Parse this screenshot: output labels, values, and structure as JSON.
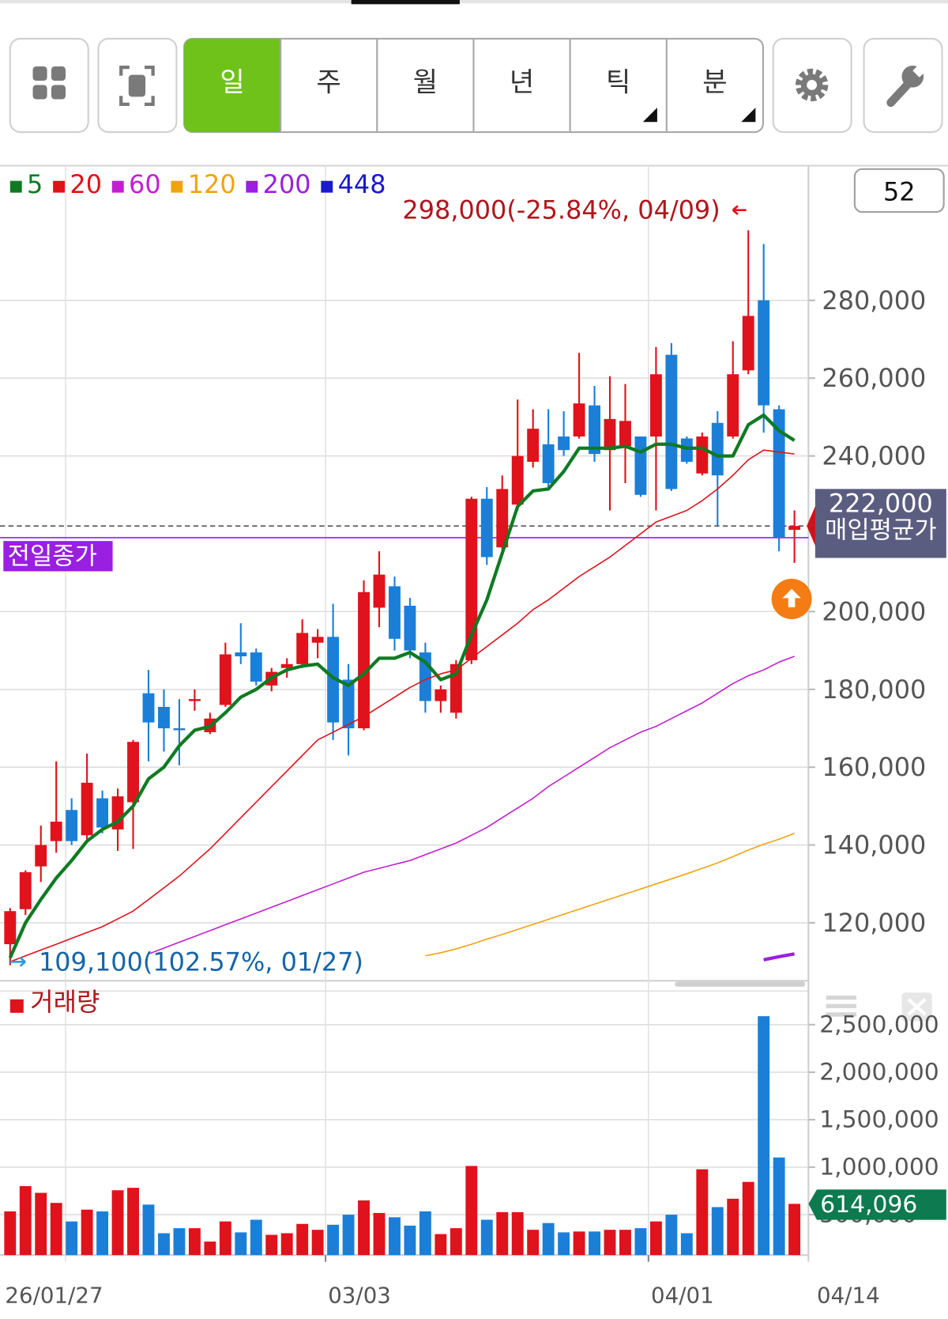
{
  "toolbar": {
    "tabs": [
      "일",
      "주",
      "월",
      "년",
      "틱",
      "분"
    ],
    "active": 0
  },
  "chart_data": [
    {
      "type": "candlestick",
      "visible_count": 52,
      "up_color": "#e0121b",
      "down_color": "#1b7fd8",
      "open": [
        114500,
        123500,
        134500,
        141000,
        149000,
        142500,
        152000,
        144000,
        151000,
        179000,
        175500,
        170000,
        177000,
        169000,
        176000,
        189500,
        189500,
        181000,
        185500,
        186500,
        192000,
        193500,
        182500,
        170000,
        201000,
        206500,
        201500,
        189500,
        177000,
        174000,
        187500,
        229000,
        216500,
        227500,
        238500,
        243000,
        245000,
        245000,
        253000,
        241500,
        242500,
        245000,
        245000,
        266000,
        244500,
        235500,
        248500,
        245000,
        262000,
        280000,
        252000,
        221000
      ],
      "high": [
        123800,
        133500,
        145000,
        161500,
        152000,
        163500,
        154000,
        154500,
        167000,
        185000,
        180000,
        177500,
        180000,
        174000,
        192000,
        197000,
        190500,
        185500,
        188000,
        198000,
        195500,
        202000,
        186500,
        208000,
        215500,
        209000,
        203500,
        192000,
        181000,
        187500,
        229500,
        232000,
        235000,
        254500,
        252000,
        252000,
        251500,
        266500,
        258000,
        260500,
        258500,
        245000,
        268000,
        269000,
        245000,
        246000,
        251500,
        269500,
        298000,
        294500,
        253000,
        226000
      ],
      "low": [
        109100,
        122000,
        130500,
        138000,
        140000,
        141000,
        143000,
        138500,
        139000,
        161500,
        164000,
        160500,
        174500,
        168500,
        175500,
        186500,
        181000,
        179500,
        183000,
        185500,
        188000,
        167000,
        163000,
        169500,
        196000,
        190000,
        188000,
        174000,
        174000,
        172500,
        186500,
        212000,
        215500,
        226000,
        237000,
        232000,
        240000,
        244500,
        238500,
        226000,
        233000,
        229500,
        226000,
        231000,
        238000,
        235000,
        222000,
        244500,
        261000,
        246000,
        215500,
        212500
      ],
      "close": [
        123000,
        133000,
        140000,
        146000,
        141000,
        156000,
        144500,
        152500,
        166500,
        171500,
        170000,
        169500,
        177500,
        172500,
        189000,
        188500,
        182000,
        184500,
        186500,
        194500,
        193500,
        171500,
        170000,
        205000,
        209500,
        193000,
        190000,
        177000,
        180000,
        186500,
        229000,
        214000,
        231500,
        240000,
        247000,
        233000,
        241500,
        253500,
        240500,
        249500,
        249000,
        230000,
        261000,
        231500,
        238500,
        245000,
        235000,
        261000,
        276000,
        253000,
        219000,
        222000
      ],
      "series": [
        {
          "name": "5",
          "color": "#0f7a22",
          "width": 4,
          "values": [
            111000,
            120000,
            126000,
            131500,
            136000,
            141000,
            144000,
            146000,
            150000,
            157000,
            160000,
            165500,
            169500,
            170500,
            174000,
            178000,
            180000,
            183000,
            185000,
            186000,
            186500,
            183000,
            181000,
            184000,
            188000,
            188000,
            189500,
            187000,
            182500,
            184000,
            194000,
            203000,
            215000,
            227000,
            231000,
            231500,
            236000,
            242000,
            242000,
            242000,
            242500,
            241000,
            243000,
            243000,
            242000,
            242000,
            240000,
            240000,
            248000,
            250500,
            246500,
            244000
          ]
        },
        {
          "name": "20",
          "color": "#e0121b",
          "width": 1.5,
          "values": [
            110000,
            111500,
            113000,
            114500,
            116000,
            117500,
            119000,
            121000,
            123000,
            126000,
            129000,
            132000,
            135500,
            139000,
            143000,
            147000,
            151000,
            155000,
            159000,
            163000,
            167000,
            169000,
            171000,
            173000,
            175500,
            178000,
            180500,
            182500,
            184000,
            185000,
            188000,
            191000,
            194000,
            197000,
            200500,
            203000,
            206000,
            209000,
            211500,
            214000,
            217000,
            220000,
            223000,
            224500,
            226000,
            228500,
            231500,
            235000,
            239000,
            241500,
            241000,
            240500
          ]
        },
        {
          "name": "60",
          "color": "#c21fd0",
          "width": 1.5,
          "values": [
            null,
            null,
            null,
            null,
            null,
            null,
            null,
            null,
            null,
            112000,
            113500,
            115000,
            116500,
            118000,
            119500,
            121000,
            122500,
            124000,
            125500,
            127000,
            128500,
            130000,
            131500,
            133000,
            134000,
            135000,
            136000,
            137500,
            139000,
            140500,
            142500,
            144500,
            147000,
            149500,
            152000,
            155000,
            157500,
            160000,
            162500,
            165000,
            167000,
            169000,
            170500,
            172500,
            174500,
            176500,
            179000,
            181500,
            183500,
            185000,
            187000,
            188500
          ]
        },
        {
          "name": "120",
          "color": "#efa40e",
          "width": 1.5,
          "values": [
            null,
            null,
            null,
            null,
            null,
            null,
            null,
            null,
            null,
            null,
            null,
            null,
            null,
            null,
            null,
            null,
            null,
            null,
            null,
            null,
            null,
            null,
            null,
            null,
            null,
            null,
            null,
            111500,
            112300,
            113300,
            114500,
            115800,
            117000,
            118300,
            119600,
            120900,
            122200,
            123500,
            124800,
            126100,
            127400,
            128700,
            130000,
            131300,
            132600,
            134000,
            135400,
            137000,
            138700,
            140200,
            141500,
            143000
          ]
        },
        {
          "name": "200",
          "color": "#9a1fe0",
          "width": 4,
          "values": [
            null,
            null,
            null,
            null,
            null,
            null,
            null,
            null,
            null,
            null,
            null,
            null,
            null,
            null,
            null,
            null,
            null,
            null,
            null,
            null,
            null,
            null,
            null,
            null,
            null,
            null,
            null,
            null,
            null,
            null,
            null,
            null,
            null,
            null,
            null,
            null,
            null,
            null,
            null,
            null,
            null,
            null,
            null,
            null,
            null,
            null,
            null,
            null,
            null,
            110500,
            111300,
            112000
          ]
        },
        {
          "name": "448",
          "color": "#1a1ad0",
          "width": 1.5
        }
      ],
      "annotations": [
        {
          "value": 298000,
          "label": "298,000(-25.84%, 04/09)",
          "color": "#b3141c"
        },
        {
          "value": 109100,
          "label": "109,100(102.57%, 01/27)",
          "color": "#1565a8"
        }
      ],
      "prev_close": {
        "value": 219000,
        "label": "전일종가",
        "color": "#9a1fe0"
      },
      "avg_price": {
        "value": 222000,
        "value_label": "222,000",
        "label": "매입평균가"
      },
      "ylim": [
        105300,
        314600
      ],
      "yticks": [
        {
          "value": 120000,
          "label": "120,000"
        },
        {
          "value": 140000,
          "label": "140,000"
        },
        {
          "value": 160000,
          "label": "160,000"
        },
        {
          "value": 180000,
          "label": "180,000"
        },
        {
          "value": 200000,
          "label": "200,000"
        },
        {
          "value": 240000,
          "label": "240,000"
        },
        {
          "value": 260000,
          "label": "260,000"
        },
        {
          "value": 280000,
          "label": "280,000"
        }
      ],
      "grid": true
    },
    {
      "type": "bar",
      "categories": [
        "26/01/27",
        null,
        null,
        null,
        null,
        null,
        null,
        null,
        null,
        null,
        null,
        null,
        null,
        null,
        null,
        null,
        null,
        null,
        null,
        null,
        null,
        "03/03",
        null,
        null,
        null,
        null,
        null,
        null,
        null,
        null,
        null,
        null,
        null,
        null,
        null,
        null,
        null,
        null,
        null,
        null,
        null,
        null,
        "04/01",
        null,
        null,
        null,
        null,
        null,
        null,
        null,
        null,
        "04/14"
      ],
      "series": [
        {
          "name": "거래량",
          "color": "#e0121b",
          "values": [
            535000,
            801000,
            730000,
            624000,
            429000,
            553000,
            535000,
            757000,
            783000,
            606000,
            305000,
            358000,
            358000,
            217000,
            429000,
            314000,
            447000,
            288000,
            305000,
            403000,
            341000,
            394000,
            500000,
            650000,
            518000,
            473000,
            385000,
            535000,
            296000,
            358000,
            1013000,
            447000,
            527000,
            527000,
            341000,
            412000,
            314000,
            323000,
            323000,
            341000,
            341000,
            358000,
            429000,
            500000,
            305000,
            978000,
            580000,
            668000,
            845000,
            2589000,
            1102000,
            614096
          ],
          "value_labels": [
            null,
            null,
            null,
            null,
            null,
            null,
            null,
            null,
            null,
            null,
            null,
            null,
            null,
            null,
            null,
            null,
            null,
            null,
            null,
            null,
            null,
            null,
            null,
            null,
            null,
            null,
            null,
            null,
            null,
            null,
            null,
            null,
            null,
            null,
            null,
            null,
            null,
            null,
            null,
            null,
            null,
            null,
            null,
            null,
            null,
            null,
            null,
            null,
            null,
            null,
            null,
            "614,096"
          ]
        }
      ],
      "down_color": "#1b7fd8",
      "ylim": [
        75000,
        2855000
      ],
      "yticks": [
        {
          "value": 500000,
          "label": "500,000"
        },
        {
          "value": 1000000,
          "label": "1,000,000"
        },
        {
          "value": 1500000,
          "label": "1,500,000"
        },
        {
          "value": 2000000,
          "label": "2,000,000"
        },
        {
          "value": 2500000,
          "label": "2,500,000"
        }
      ],
      "grid": true
    }
  ]
}
